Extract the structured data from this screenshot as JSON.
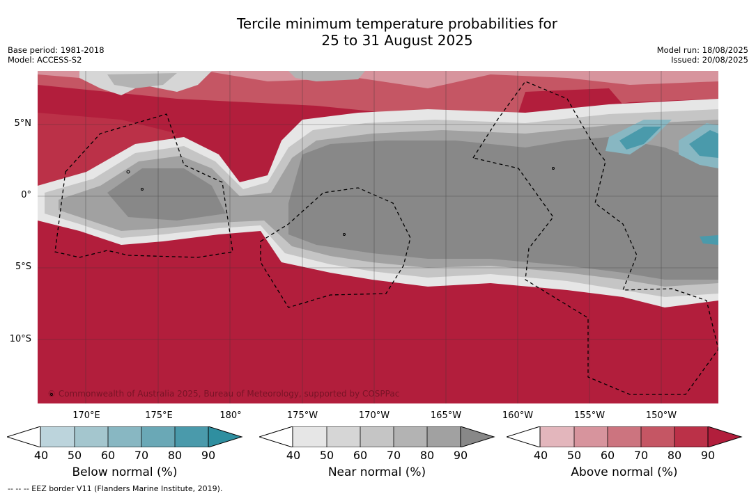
{
  "title": {
    "line1": "Tercile minimum temperature probabilities for",
    "line2": "25 to 31 August 2025"
  },
  "meta_left": {
    "base_period": "Base period: 1981-2018",
    "model": "Model: ACCESS-S2"
  },
  "meta_right": {
    "model_run": "Model run: 18/08/2025",
    "issued": "Issued: 20/08/2025"
  },
  "map": {
    "lat_labels": [
      "5°N",
      "0°",
      "5°S",
      "10°S"
    ],
    "lon_labels": [
      "170°E",
      "175°E",
      "180°",
      "175°W",
      "170°W",
      "165°W",
      "160°W",
      "155°W",
      "150°W"
    ],
    "credit": "© Commonwealth of Australia 2025, Bureau of Meteorology, supported by COSPPac",
    "colors": {
      "above_dark": "#b21e3c",
      "near_dark": "#888888",
      "below_mid": "#4aa3b5"
    }
  },
  "colorbars": [
    {
      "title": "Below normal (%)",
      "ticks": [
        "40",
        "50",
        "60",
        "70",
        "80",
        "90"
      ],
      "colors": [
        "#ffffff",
        "#bcd4dc",
        "#a4c6ce",
        "#88b7c2",
        "#6aa8b6",
        "#4a9aab",
        "#2f8fa0"
      ]
    },
    {
      "title": "Near normal (%)",
      "ticks": [
        "40",
        "50",
        "60",
        "70",
        "80",
        "90"
      ],
      "colors": [
        "#ffffff",
        "#e6e6e6",
        "#d6d6d6",
        "#c5c5c5",
        "#b3b3b3",
        "#a1a1a1",
        "#888888"
      ]
    },
    {
      "title": "Above normal (%)",
      "ticks": [
        "40",
        "50",
        "60",
        "70",
        "80",
        "90"
      ],
      "colors": [
        "#ffffff",
        "#e3b6bc",
        "#d7949d",
        "#cc747f",
        "#c55664",
        "#bb3148",
        "#b21e3c"
      ]
    }
  ],
  "footer": "--  --  -- EEZ border V11 (Flanders Marine Institute, 2019)."
}
